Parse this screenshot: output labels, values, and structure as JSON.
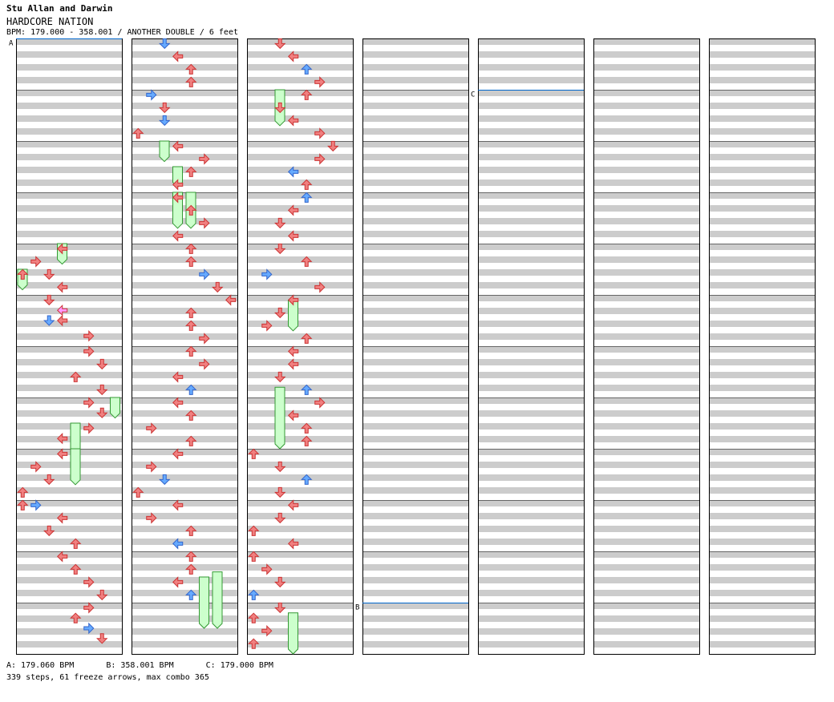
{
  "header": {
    "artist": "Stu Allan and Darwin",
    "title": "HARDCORE NATION",
    "info": "BPM: 179.000 - 358.001 / ANOTHER DOUBLE / 6 feet"
  },
  "bpm_changes": [
    {
      "label": "A",
      "text": "A: 179.060 BPM",
      "column": 1,
      "measure": 0
    },
    {
      "label": "B",
      "text": "B: 358.001 BPM",
      "column": 4,
      "measure": 11
    },
    {
      "label": "C",
      "text": "C: 179.000 BPM",
      "column": 5,
      "measure": 1
    }
  ],
  "stats": "339 steps, 61 freeze arrows, max combo 365",
  "colors": {
    "red": "#f08080",
    "red_edge": "#cc3333",
    "blue": "#66aaff",
    "blue_edge": "#3366cc",
    "freeze": "#ccffcc",
    "freeze_edge": "#339933",
    "pink": "#ff99ff"
  },
  "icons": {
    "arrow": "step-arrow-icon",
    "freeze": "freeze-arrow-icon"
  },
  "chart_data": {
    "type": "step-chart",
    "columns": 7,
    "measures_per_column": 12,
    "lanes": 8,
    "note_encoding": "[column, measure, beat_fraction, lane, color]",
    "freeze_encoding": "[column, start_measure_position, end_measure_position, lane]",
    "notes": [
      [
        1,
        4,
        0.1,
        3,
        "red"
      ],
      [
        1,
        4,
        0.35,
        1,
        "red"
      ],
      [
        1,
        4,
        0.6,
        0,
        "red"
      ],
      [
        1,
        4,
        0.6,
        2,
        "red"
      ],
      [
        1,
        4,
        0.85,
        3,
        "red"
      ],
      [
        1,
        5,
        0.1,
        2,
        "red"
      ],
      [
        1,
        5,
        0.3,
        3,
        "pink"
      ],
      [
        1,
        5,
        0.5,
        3,
        "red"
      ],
      [
        1,
        5,
        0.5,
        2,
        "blue"
      ],
      [
        1,
        5,
        0.8,
        5,
        "red"
      ],
      [
        1,
        6,
        0.1,
        5,
        "red"
      ],
      [
        1,
        6,
        0.35,
        6,
        "red"
      ],
      [
        1,
        6,
        0.6,
        4,
        "red"
      ],
      [
        1,
        6,
        0.85,
        6,
        "red"
      ],
      [
        1,
        7,
        0.1,
        5,
        "red"
      ],
      [
        1,
        7,
        0.3,
        6,
        "red"
      ],
      [
        1,
        7,
        0.6,
        5,
        "red"
      ],
      [
        1,
        7,
        0.8,
        3,
        "red"
      ],
      [
        1,
        8,
        0.1,
        3,
        "red"
      ],
      [
        1,
        8,
        0.35,
        1,
        "red"
      ],
      [
        1,
        8,
        0.6,
        2,
        "red"
      ],
      [
        1,
        8,
        0.85,
        0,
        "red"
      ],
      [
        1,
        9,
        0.1,
        1,
        "blue"
      ],
      [
        1,
        9,
        0.1,
        0,
        "red"
      ],
      [
        1,
        9,
        0.35,
        3,
        "red"
      ],
      [
        1,
        9,
        0.6,
        2,
        "red"
      ],
      [
        1,
        9,
        0.85,
        4,
        "red"
      ],
      [
        1,
        10,
        0.1,
        3,
        "red"
      ],
      [
        1,
        10,
        0.35,
        4,
        "red"
      ],
      [
        1,
        10,
        0.6,
        5,
        "red"
      ],
      [
        1,
        10,
        0.85,
        6,
        "red"
      ],
      [
        1,
        11,
        0.1,
        5,
        "red"
      ],
      [
        1,
        11,
        0.3,
        4,
        "red"
      ],
      [
        1,
        11,
        0.5,
        5,
        "blue"
      ],
      [
        1,
        11,
        0.7,
        6,
        "red"
      ],
      [
        2,
        0,
        0.1,
        2,
        "blue"
      ],
      [
        2,
        0,
        0.35,
        3,
        "red"
      ],
      [
        2,
        0,
        0.6,
        4,
        "red"
      ],
      [
        2,
        0,
        0.85,
        4,
        "red"
      ],
      [
        2,
        1,
        0.1,
        1,
        "blue"
      ],
      [
        2,
        1,
        0.35,
        2,
        "red"
      ],
      [
        2,
        1,
        0.6,
        2,
        "blue"
      ],
      [
        2,
        1,
        0.85,
        0,
        "red"
      ],
      [
        2,
        2,
        0.1,
        3,
        "red"
      ],
      [
        2,
        2,
        0.35,
        5,
        "red"
      ],
      [
        2,
        2,
        0.6,
        4,
        "red"
      ],
      [
        2,
        2,
        0.85,
        3,
        "red"
      ],
      [
        2,
        3,
        0.1,
        3,
        "red"
      ],
      [
        2,
        3,
        0.35,
        4,
        "red"
      ],
      [
        2,
        3,
        0.6,
        5,
        "red"
      ],
      [
        2,
        3,
        0.85,
        3,
        "red"
      ],
      [
        2,
        4,
        0.1,
        4,
        "red"
      ],
      [
        2,
        4,
        0.35,
        4,
        "red"
      ],
      [
        2,
        4,
        0.6,
        5,
        "blue"
      ],
      [
        2,
        4,
        0.85,
        6,
        "red"
      ],
      [
        2,
        5,
        0.1,
        7,
        "red"
      ],
      [
        2,
        5,
        0.35,
        4,
        "red"
      ],
      [
        2,
        5,
        0.6,
        4,
        "red"
      ],
      [
        2,
        5,
        0.85,
        5,
        "red"
      ],
      [
        2,
        6,
        0.1,
        4,
        "red"
      ],
      [
        2,
        6,
        0.35,
        5,
        "red"
      ],
      [
        2,
        6,
        0.6,
        3,
        "red"
      ],
      [
        2,
        6,
        0.85,
        4,
        "blue"
      ],
      [
        2,
        7,
        0.1,
        3,
        "red"
      ],
      [
        2,
        7,
        0.35,
        4,
        "red"
      ],
      [
        2,
        7,
        0.6,
        1,
        "red"
      ],
      [
        2,
        7,
        0.85,
        4,
        "red"
      ],
      [
        2,
        8,
        0.1,
        3,
        "red"
      ],
      [
        2,
        8,
        0.35,
        1,
        "red"
      ],
      [
        2,
        8,
        0.6,
        2,
        "blue"
      ],
      [
        2,
        8,
        0.85,
        0,
        "red"
      ],
      [
        2,
        9,
        0.1,
        3,
        "red"
      ],
      [
        2,
        9,
        0.35,
        1,
        "red"
      ],
      [
        2,
        9,
        0.6,
        4,
        "red"
      ],
      [
        2,
        9,
        0.85,
        3,
        "blue"
      ],
      [
        2,
        10,
        0.1,
        4,
        "red"
      ],
      [
        2,
        10,
        0.35,
        4,
        "red"
      ],
      [
        2,
        10,
        0.6,
        3,
        "red"
      ],
      [
        2,
        10,
        0.85,
        4,
        "blue"
      ],
      [
        3,
        0,
        0.1,
        2,
        "red"
      ],
      [
        3,
        0,
        0.35,
        3,
        "red"
      ],
      [
        3,
        0,
        0.6,
        4,
        "blue"
      ],
      [
        3,
        0,
        0.85,
        5,
        "red"
      ],
      [
        3,
        1,
        0.1,
        4,
        "red"
      ],
      [
        3,
        1,
        0.35,
        2,
        "red"
      ],
      [
        3,
        1,
        0.6,
        3,
        "red"
      ],
      [
        3,
        1,
        0.85,
        5,
        "red"
      ],
      [
        3,
        2,
        0.1,
        6,
        "red"
      ],
      [
        3,
        2,
        0.35,
        5,
        "red"
      ],
      [
        3,
        2,
        0.6,
        3,
        "blue"
      ],
      [
        3,
        2,
        0.85,
        4,
        "red"
      ],
      [
        3,
        3,
        0.1,
        4,
        "blue"
      ],
      [
        3,
        3,
        0.35,
        3,
        "red"
      ],
      [
        3,
        3,
        0.6,
        2,
        "red"
      ],
      [
        3,
        3,
        0.85,
        3,
        "red"
      ],
      [
        3,
        4,
        0.1,
        2,
        "red"
      ],
      [
        3,
        4,
        0.35,
        4,
        "red"
      ],
      [
        3,
        4,
        0.6,
        1,
        "blue"
      ],
      [
        3,
        4,
        0.85,
        5,
        "red"
      ],
      [
        3,
        5,
        0.1,
        3,
        "red"
      ],
      [
        3,
        5,
        0.35,
        2,
        "red"
      ],
      [
        3,
        5,
        0.6,
        1,
        "red"
      ],
      [
        3,
        5,
        0.85,
        4,
        "red"
      ],
      [
        3,
        6,
        0.1,
        3,
        "red"
      ],
      [
        3,
        6,
        0.35,
        3,
        "red"
      ],
      [
        3,
        6,
        0.6,
        2,
        "red"
      ],
      [
        3,
        6,
        0.85,
        4,
        "blue"
      ],
      [
        3,
        7,
        0.1,
        5,
        "red"
      ],
      [
        3,
        7,
        0.35,
        3,
        "red"
      ],
      [
        3,
        7,
        0.6,
        4,
        "red"
      ],
      [
        3,
        7,
        0.85,
        4,
        "red"
      ],
      [
        3,
        8,
        0.1,
        0,
        "red"
      ],
      [
        3,
        8,
        0.35,
        2,
        "red"
      ],
      [
        3,
        8,
        0.6,
        4,
        "blue"
      ],
      [
        3,
        8,
        0.85,
        2,
        "red"
      ],
      [
        3,
        9,
        0.1,
        3,
        "red"
      ],
      [
        3,
        9,
        0.35,
        2,
        "red"
      ],
      [
        3,
        9,
        0.6,
        0,
        "red"
      ],
      [
        3,
        9,
        0.85,
        3,
        "red"
      ],
      [
        3,
        10,
        0.1,
        0,
        "red"
      ],
      [
        3,
        10,
        0.35,
        1,
        "red"
      ],
      [
        3,
        10,
        0.6,
        2,
        "red"
      ],
      [
        3,
        10,
        0.85,
        0,
        "blue"
      ],
      [
        3,
        11,
        0.1,
        2,
        "red"
      ],
      [
        3,
        11,
        0.3,
        0,
        "red"
      ],
      [
        3,
        11,
        0.55,
        1,
        "red"
      ],
      [
        3,
        11,
        0.8,
        0,
        "red"
      ]
    ],
    "freezes": [
      [
        1,
        4.0,
        4.4,
        3
      ],
      [
        1,
        4.5,
        4.9,
        0
      ],
      [
        1,
        7.5,
        8.2,
        4
      ],
      [
        1,
        7.0,
        7.4,
        7
      ],
      [
        1,
        8.0,
        8.7,
        4
      ],
      [
        2,
        2.0,
        2.4,
        2
      ],
      [
        2,
        2.5,
        2.9,
        3
      ],
      [
        2,
        3.0,
        3.7,
        3
      ],
      [
        2,
        3.0,
        3.7,
        4
      ],
      [
        2,
        10.5,
        11.5,
        5
      ],
      [
        2,
        10.4,
        11.5,
        6
      ],
      [
        3,
        1.0,
        1.7,
        2
      ],
      [
        3,
        5.1,
        5.7,
        3
      ],
      [
        3,
        6.8,
        8.0,
        2
      ],
      [
        3,
        11.2,
        12.0,
        3
      ]
    ]
  }
}
